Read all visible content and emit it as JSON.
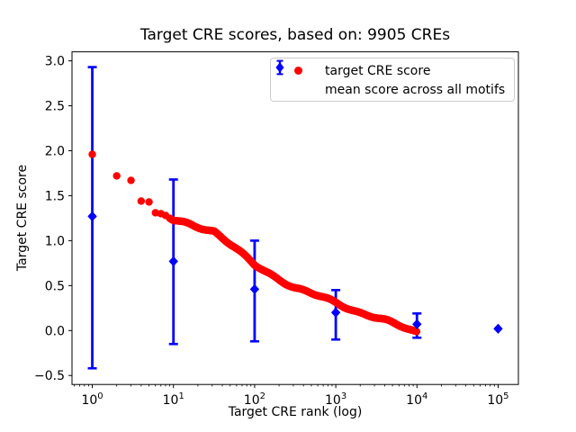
{
  "chart_data": {
    "type": "scatter",
    "title": "Target CRE scores, based on: 9905 CREs",
    "xlabel": "Target CRE rank (log)",
    "ylabel": "Target CRE score",
    "xscale": "log",
    "xlim_log10": [
      -0.25,
      5.25
    ],
    "ylim": [
      -0.6,
      3.1
    ],
    "xtick_exponents": [
      0,
      1,
      2,
      3,
      4,
      5
    ],
    "yticks": [
      -0.5,
      0.0,
      0.5,
      1.0,
      1.5,
      2.0,
      2.5,
      3.0
    ],
    "grid": false,
    "legend_position": "upper right",
    "colors": {
      "target": "#ff0000",
      "mean": "#0000ff",
      "axes": "#000000",
      "legend_border": "#cccccc"
    },
    "series": [
      {
        "name": "target CRE score",
        "color": "#ff0000",
        "marker": "circle",
        "total_points": 9905,
        "anchor_points": [
          [
            1,
            1.96
          ],
          [
            2,
            1.72
          ],
          [
            3,
            1.67
          ],
          [
            4,
            1.44
          ],
          [
            5,
            1.43
          ],
          [
            6,
            1.31
          ],
          [
            7,
            1.3
          ],
          [
            8,
            1.28
          ],
          [
            10,
            1.22
          ],
          [
            18,
            1.16
          ],
          [
            32,
            1.11
          ],
          [
            56,
            0.93
          ],
          [
            100,
            0.72
          ],
          [
            178,
            0.6
          ],
          [
            316,
            0.48
          ],
          [
            562,
            0.39
          ],
          [
            1000,
            0.31
          ],
          [
            1778,
            0.22
          ],
          [
            3162,
            0.14
          ],
          [
            5623,
            0.06
          ],
          [
            9905,
            -0.01
          ]
        ]
      },
      {
        "name": "mean score across all motifs",
        "color": "#0000ff",
        "marker": "diamond",
        "points": [
          {
            "x": 1,
            "y": 1.27,
            "y_low": -0.42,
            "y_high": 2.93
          },
          {
            "x": 10,
            "y": 0.77,
            "y_low": -0.15,
            "y_high": 1.68
          },
          {
            "x": 100,
            "y": 0.46,
            "y_low": -0.12,
            "y_high": 1.0
          },
          {
            "x": 1000,
            "y": 0.2,
            "y_low": -0.1,
            "y_high": 0.45
          },
          {
            "x": 10000,
            "y": 0.07,
            "y_low": -0.08,
            "y_high": 0.19
          },
          {
            "x": 100000,
            "y": 0.02,
            "y_low": 0.02,
            "y_high": 0.02
          }
        ]
      }
    ]
  }
}
